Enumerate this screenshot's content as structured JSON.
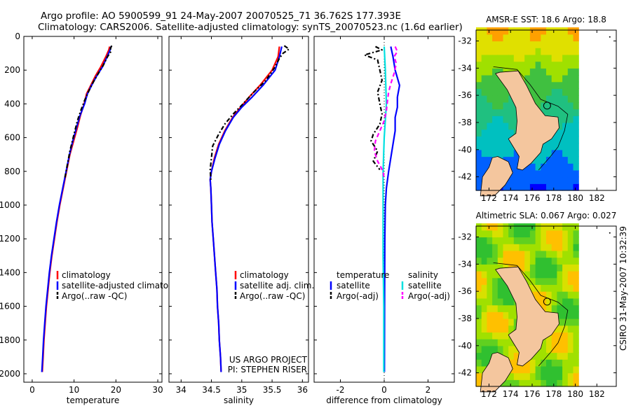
{
  "header": {
    "line1": "Argo profile: AO 5900599_91 24-May-2007 20070525_71 36.762S 177.393E",
    "line2": "Climatology: CARS2006. Satellite-adjusted climatology: synTS_20070523.nc (1.6d earlier)"
  },
  "side_caption": "CSIRO 31-May-2007 10:32:39",
  "chart_data": [
    {
      "id": "temperature",
      "type": "line",
      "xlabel": "temperature",
      "ylabel": "",
      "xlim": [
        -2,
        31
      ],
      "ylim": [
        2050,
        0
      ],
      "xticks": [
        0,
        10,
        20,
        30
      ],
      "yticks": [
        0,
        200,
        400,
        600,
        800,
        1000,
        1200,
        1400,
        1600,
        1800,
        2000
      ],
      "legend": [
        "climatology",
        "satellite-adjusted climatology",
        "Argo(..raw -QC)"
      ],
      "series": [
        {
          "name": "climatology",
          "color": "#ff0000",
          "dash": "",
          "points": [
            [
              18.5,
              60
            ],
            [
              18.3,
              80
            ],
            [
              17.6,
              120
            ],
            [
              16.4,
              180
            ],
            [
              15.2,
              230
            ],
            [
              14.0,
              290
            ],
            [
              13.0,
              340
            ],
            [
              12.4,
              400
            ],
            [
              11.5,
              470
            ],
            [
              10.8,
              540
            ],
            [
              9.9,
              620
            ],
            [
              9.0,
              700
            ],
            [
              8.2,
              800
            ],
            [
              7.4,
              900
            ],
            [
              6.6,
              1000
            ],
            [
              5.9,
              1100
            ],
            [
              5.3,
              1200
            ],
            [
              4.7,
              1300
            ],
            [
              4.2,
              1400
            ],
            [
              3.8,
              1500
            ],
            [
              3.4,
              1600
            ],
            [
              3.1,
              1700
            ],
            [
              2.8,
              1800
            ],
            [
              2.6,
              1900
            ],
            [
              2.4,
              1990
            ]
          ]
        },
        {
          "name": "satellite-adjusted climatology",
          "color": "#0000ff",
          "dash": "",
          "points": [
            [
              18.8,
              60
            ],
            [
              18.6,
              80
            ],
            [
              17.9,
              120
            ],
            [
              16.8,
              180
            ],
            [
              15.5,
              230
            ],
            [
              14.2,
              290
            ],
            [
              13.2,
              340
            ],
            [
              12.5,
              400
            ],
            [
              11.4,
              470
            ],
            [
              10.6,
              540
            ],
            [
              9.7,
              620
            ],
            [
              8.9,
              700
            ],
            [
              8.1,
              800
            ],
            [
              7.3,
              900
            ],
            [
              6.5,
              1000
            ],
            [
              5.8,
              1100
            ],
            [
              5.2,
              1200
            ],
            [
              4.6,
              1300
            ],
            [
              4.1,
              1400
            ],
            [
              3.7,
              1500
            ],
            [
              3.3,
              1600
            ],
            [
              3.0,
              1700
            ],
            [
              2.7,
              1800
            ],
            [
              2.5,
              1900
            ],
            [
              2.3,
              1990
            ]
          ]
        },
        {
          "name": "Argo(..raw -QC)",
          "color": "#000000",
          "dash": "6,3,2,3",
          "points": [
            [
              19.0,
              55
            ],
            [
              18.7,
              70
            ],
            [
              18.8,
              90
            ],
            [
              18.0,
              120
            ],
            [
              17.0,
              170
            ],
            [
              15.8,
              220
            ],
            [
              14.6,
              270
            ],
            [
              13.6,
              320
            ],
            [
              12.5,
              380
            ],
            [
              11.6,
              440
            ],
            [
              10.8,
              500
            ],
            [
              10.2,
              560
            ],
            [
              9.6,
              620
            ],
            [
              9.0,
              680
            ],
            [
              8.4,
              760
            ],
            [
              7.8,
              840
            ]
          ]
        }
      ]
    },
    {
      "id": "salinity",
      "type": "line",
      "xlabel": "salinity",
      "ylabel": "",
      "xlim": [
        33.8,
        36.1
      ],
      "ylim": [
        2050,
        0
      ],
      "xticks": [
        34,
        34.5,
        35,
        35.5,
        36
      ],
      "yticks": [
        0,
        200,
        400,
        600,
        800,
        1000,
        1200,
        1400,
        1600,
        1800,
        2000
      ],
      "legend": [
        "climatology",
        "satellite adj. clim.",
        "Argo(..raw -QC)"
      ],
      "annotation": [
        "US ARGO PROJECT",
        "PI: STEPHEN RISER"
      ],
      "series": [
        {
          "name": "climatology",
          "color": "#ff0000",
          "dash": "",
          "points": [
            [
              35.62,
              60
            ],
            [
              35.6,
              120
            ],
            [
              35.5,
              200
            ],
            [
              35.3,
              290
            ],
            [
              35.12,
              360
            ],
            [
              34.98,
              420
            ],
            [
              34.85,
              480
            ],
            [
              34.72,
              560
            ],
            [
              34.62,
              640
            ],
            [
              34.55,
              720
            ],
            [
              34.5,
              800
            ],
            [
              34.48,
              850
            ],
            [
              34.49,
              900
            ],
            [
              34.5,
              1000
            ],
            [
              34.51,
              1100
            ],
            [
              34.53,
              1200
            ],
            [
              34.55,
              1300
            ],
            [
              34.57,
              1400
            ],
            [
              34.59,
              1500
            ],
            [
              34.6,
              1600
            ],
            [
              34.62,
              1700
            ],
            [
              34.63,
              1800
            ],
            [
              34.65,
              1900
            ],
            [
              34.66,
              1990
            ]
          ]
        },
        {
          "name": "satellite adj. clim.",
          "color": "#0000ff",
          "dash": "",
          "points": [
            [
              35.66,
              60
            ],
            [
              35.62,
              120
            ],
            [
              35.55,
              200
            ],
            [
              35.35,
              290
            ],
            [
              35.17,
              360
            ],
            [
              35.0,
              420
            ],
            [
              34.86,
              480
            ],
            [
              34.73,
              560
            ],
            [
              34.63,
              640
            ],
            [
              34.56,
              720
            ],
            [
              34.5,
              800
            ],
            [
              34.48,
              850
            ],
            [
              34.49,
              900
            ],
            [
              34.5,
              1000
            ],
            [
              34.51,
              1100
            ],
            [
              34.53,
              1200
            ],
            [
              34.55,
              1300
            ],
            [
              34.57,
              1400
            ],
            [
              34.59,
              1500
            ],
            [
              34.6,
              1600
            ],
            [
              34.62,
              1700
            ],
            [
              34.63,
              1800
            ],
            [
              34.65,
              1900
            ],
            [
              34.66,
              1990
            ]
          ]
        },
        {
          "name": "Argo(..raw -QC)",
          "color": "#000000",
          "dash": "6,3,2,3",
          "points": [
            [
              35.7,
              55
            ],
            [
              35.78,
              75
            ],
            [
              35.68,
              100
            ],
            [
              35.62,
              130
            ],
            [
              35.55,
              180
            ],
            [
              35.4,
              260
            ],
            [
              35.2,
              330
            ],
            [
              35.02,
              400
            ],
            [
              34.86,
              460
            ],
            [
              34.72,
              520
            ],
            [
              34.62,
              580
            ],
            [
              34.52,
              650
            ],
            [
              34.5,
              720
            ],
            [
              34.48,
              790
            ],
            [
              34.49,
              850
            ]
          ]
        }
      ]
    },
    {
      "id": "difference",
      "type": "line",
      "xlabel": "difference from climatology",
      "ylabel": "",
      "xlim": [
        -3.2,
        3.2
      ],
      "ylim": [
        2050,
        0
      ],
      "xticks": [
        -2,
        0,
        2
      ],
      "yticks": [
        0,
        200,
        400,
        600,
        800,
        1000,
        1200,
        1400,
        1600,
        1800,
        2000
      ],
      "legend_groups": [
        {
          "title": "temperature",
          "items": [
            "satellite",
            "Argo(-adj)"
          ]
        },
        {
          "title": "salinity",
          "items": [
            "satellite",
            "Argo(-adj)"
          ]
        }
      ],
      "series": [
        {
          "name": "temperature satellite",
          "color": "#0000ff",
          "dash": "",
          "points": [
            [
              0.3,
              60
            ],
            [
              0.4,
              120
            ],
            [
              0.5,
              200
            ],
            [
              0.7,
              290
            ],
            [
              0.6,
              360
            ],
            [
              0.6,
              420
            ],
            [
              0.5,
              480
            ],
            [
              0.5,
              560
            ],
            [
              0.4,
              640
            ],
            [
              0.3,
              720
            ],
            [
              0.2,
              800
            ],
            [
              0.1,
              900
            ],
            [
              0.05,
              1000
            ],
            [
              0.03,
              1200
            ],
            [
              0.02,
              1500
            ],
            [
              0.01,
              1990
            ]
          ]
        },
        {
          "name": "temperature Argo(-adj)",
          "color": "#000000",
          "dash": "6,3,2,3",
          "points": [
            [
              -0.4,
              60
            ],
            [
              -0.1,
              80
            ],
            [
              -0.9,
              110
            ],
            [
              -0.3,
              140
            ],
            [
              -0.2,
              200
            ],
            [
              -0.1,
              260
            ],
            [
              -0.3,
              330
            ],
            [
              -0.2,
              400
            ],
            [
              -0.1,
              460
            ],
            [
              -0.2,
              520
            ],
            [
              -0.5,
              580
            ],
            [
              -0.6,
              620
            ],
            [
              -0.3,
              680
            ],
            [
              -0.5,
              740
            ],
            [
              -0.2,
              790
            ]
          ]
        },
        {
          "name": "salinity satellite",
          "color": "#00e0e0",
          "dash": "",
          "points": [
            [
              0.0,
              60
            ],
            [
              0.05,
              200
            ],
            [
              0.1,
              400
            ],
            [
              0.0,
              600
            ],
            [
              -0.05,
              800
            ],
            [
              -0.05,
              1000
            ],
            [
              -0.05,
              1300
            ],
            [
              -0.02,
              1600
            ],
            [
              -0.02,
              1990
            ]
          ]
        },
        {
          "name": "salinity Argo(-adj)",
          "color": "#ff00ff",
          "dash": "6,4",
          "points": [
            [
              0.5,
              60
            ],
            [
              0.6,
              90
            ],
            [
              0.45,
              120
            ],
            [
              0.55,
              160
            ],
            [
              0.45,
              220
            ],
            [
              0.3,
              280
            ],
            [
              0.2,
              330
            ],
            [
              0.15,
              380
            ],
            [
              0.1,
              440
            ],
            [
              0.0,
              500
            ],
            [
              -0.2,
              560
            ],
            [
              -0.4,
              620
            ],
            [
              -0.45,
              680
            ],
            [
              -0.3,
              740
            ],
            [
              -0.05,
              800
            ],
            [
              0.0,
              850
            ]
          ]
        }
      ]
    },
    {
      "id": "sst_map",
      "type": "heatmap",
      "title": "AMSR-E SST: 18.6 Argo: 18.8",
      "xlim": [
        170.8,
        183.8
      ],
      "ylim": [
        -43,
        -31.2
      ],
      "xticks": [
        172,
        174,
        176,
        178,
        180,
        182
      ],
      "yticks": [
        -32,
        -34,
        -36,
        -38,
        -40,
        -42
      ],
      "float_marker": [
        177.39,
        -36.76
      ]
    },
    {
      "id": "sla_map",
      "type": "heatmap",
      "title": "Altimetric SLA: 0.067 Argo: 0.027",
      "xlim": [
        170.8,
        183.8
      ],
      "ylim": [
        -43,
        -31.2
      ],
      "xticks": [
        172,
        174,
        176,
        178,
        180,
        182
      ],
      "yticks": [
        -32,
        -34,
        -36,
        -38,
        -40,
        -42
      ],
      "float_marker": [
        177.39,
        -36.76
      ]
    }
  ]
}
